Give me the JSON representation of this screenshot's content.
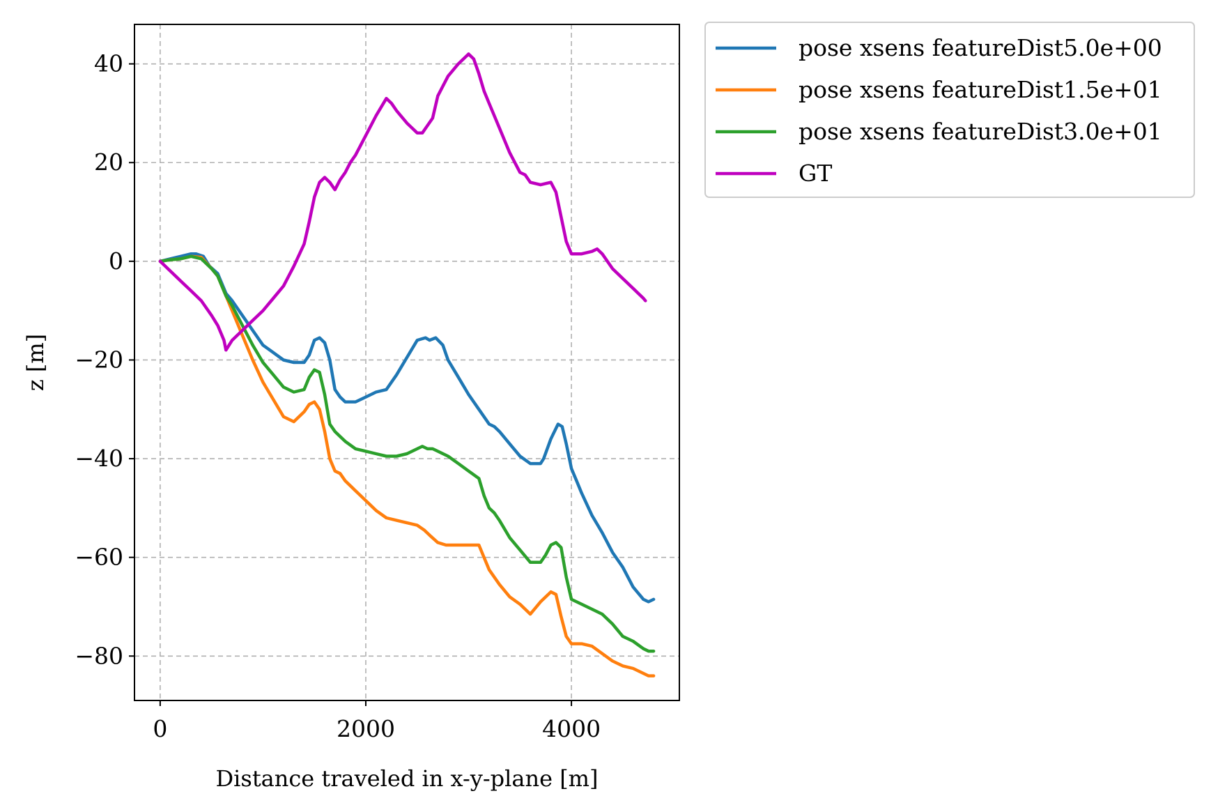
{
  "chart_data": {
    "type": "line",
    "xlabel": "Distance traveled in x-y-plane [m]",
    "ylabel": "z [m]",
    "xlim": [
      -250,
      5050
    ],
    "ylim": [
      -89,
      48
    ],
    "xticks": [
      0,
      2000,
      4000
    ],
    "xtick_labels": [
      "0",
      "2000",
      "4000"
    ],
    "yticks": [
      40,
      20,
      0,
      -20,
      -40,
      -60,
      -80
    ],
    "ytick_labels": [
      "40",
      "20",
      "0",
      "−20",
      "−40",
      "−60",
      "−80"
    ],
    "grid": true,
    "legend_position": "outside-top-right",
    "series": [
      {
        "name": "pose xsens featureDist5.0e+00",
        "color": "#1f77b4",
        "x": [
          0,
          100,
          200,
          300,
          350,
          420,
          480,
          560,
          640,
          700,
          800,
          900,
          1000,
          1100,
          1200,
          1300,
          1400,
          1450,
          1500,
          1550,
          1600,
          1650,
          1700,
          1750,
          1800,
          1900,
          2000,
          2100,
          2200,
          2300,
          2400,
          2500,
          2580,
          2620,
          2680,
          2750,
          2800,
          2900,
          3000,
          3100,
          3150,
          3200,
          3250,
          3300,
          3400,
          3500,
          3600,
          3700,
          3730,
          3800,
          3870,
          3910,
          3950,
          4000,
          4050,
          4100,
          4200,
          4300,
          4400,
          4500,
          4600,
          4700,
          4750,
          4800
        ],
        "y": [
          0,
          0.5,
          1,
          1.5,
          1.5,
          1,
          -1,
          -2.5,
          -6.5,
          -8,
          -11,
          -14,
          -17,
          -18.5,
          -20,
          -20.5,
          -20.5,
          -19,
          -16,
          -15.5,
          -16.5,
          -20,
          -26,
          -27.5,
          -28.5,
          -28.5,
          -27.5,
          -26.5,
          -26,
          -23,
          -19.5,
          -16,
          -15.5,
          -16,
          -15.5,
          -17,
          -20,
          -23.5,
          -27,
          -30,
          -31.5,
          -33,
          -33.5,
          -34.5,
          -37,
          -39.5,
          -41,
          -41,
          -40,
          -36,
          -33,
          -33.5,
          -37,
          -42,
          -44.5,
          -47,
          -51.5,
          -55,
          -59,
          -62,
          -66,
          -68.5,
          -69,
          -68.5
        ]
      },
      {
        "name": "pose xsens featureDist1.5e+01",
        "color": "#ff7f0e",
        "x": [
          0,
          100,
          200,
          300,
          400,
          500,
          560,
          640,
          700,
          800,
          900,
          1000,
          1100,
          1200,
          1300,
          1400,
          1450,
          1500,
          1550,
          1600,
          1650,
          1700,
          1750,
          1800,
          1900,
          2000,
          2100,
          2200,
          2300,
          2400,
          2500,
          2570,
          2620,
          2700,
          2780,
          2850,
          2900,
          3000,
          3100,
          3200,
          3300,
          3400,
          3500,
          3600,
          3700,
          3800,
          3850,
          3900,
          3950,
          4000,
          4050,
          4100,
          4200,
          4300,
          4400,
          4500,
          4600,
          4700,
          4750,
          4800
        ],
        "y": [
          0,
          0.3,
          0.5,
          1,
          0.8,
          -1.5,
          -3,
          -7,
          -10,
          -15,
          -20,
          -24.5,
          -28,
          -31.5,
          -32.5,
          -30.5,
          -29,
          -28.5,
          -30,
          -34.5,
          -40,
          -42.5,
          -43,
          -44.5,
          -46.5,
          -48.5,
          -50.5,
          -52,
          -52.5,
          -53,
          -53.5,
          -54.5,
          -55.5,
          -57,
          -57.5,
          -57.5,
          -57.5,
          -57.5,
          -57.5,
          -62.5,
          -65.5,
          -68,
          -69.5,
          -71.5,
          -69,
          -67,
          -67.5,
          -72,
          -76,
          -77.5,
          -77.5,
          -77.5,
          -78,
          -79.5,
          -81,
          -82,
          -82.5,
          -83.5,
          -84,
          -84
        ]
      },
      {
        "name": "pose xsens featureDist3.0e+01",
        "color": "#2ca02c",
        "x": [
          0,
          100,
          200,
          300,
          400,
          500,
          560,
          640,
          700,
          800,
          900,
          1000,
          1100,
          1200,
          1300,
          1400,
          1450,
          1500,
          1550,
          1600,
          1650,
          1700,
          1750,
          1800,
          1900,
          2000,
          2100,
          2200,
          2300,
          2400,
          2500,
          2550,
          2600,
          2650,
          2700,
          2800,
          2900,
          3000,
          3100,
          3150,
          3200,
          3250,
          3300,
          3400,
          3500,
          3600,
          3700,
          3750,
          3800,
          3850,
          3900,
          3950,
          4000,
          4050,
          4100,
          4200,
          4300,
          4400,
          4500,
          4600,
          4700,
          4750,
          4800
        ],
        "y": [
          0,
          0.3,
          0.5,
          1,
          0.5,
          -1.5,
          -3,
          -7,
          -9,
          -13,
          -17,
          -20.5,
          -23,
          -25.5,
          -26.5,
          -26,
          -23.5,
          -22,
          -22.5,
          -27,
          -33,
          -34.5,
          -35.5,
          -36.5,
          -38,
          -38.5,
          -39,
          -39.5,
          -39.5,
          -39,
          -38,
          -37.5,
          -38,
          -38,
          -38.5,
          -39.5,
          -41,
          -42.5,
          -44,
          -47.5,
          -50,
          -51,
          -52.5,
          -56,
          -58.5,
          -61,
          -61,
          -59.5,
          -57.5,
          -57,
          -58,
          -64,
          -68.5,
          -69,
          -69.5,
          -70.5,
          -71.5,
          -73.5,
          -76,
          -77,
          -78.5,
          -79,
          -79
        ]
      },
      {
        "name": "GT",
        "color": "#bf00bf",
        "x": [
          0,
          100,
          200,
          300,
          400,
          500,
          560,
          620,
          640,
          700,
          800,
          900,
          1000,
          1100,
          1200,
          1300,
          1400,
          1450,
          1500,
          1550,
          1600,
          1650,
          1700,
          1750,
          1800,
          1850,
          1900,
          2000,
          2100,
          2200,
          2250,
          2300,
          2400,
          2500,
          2550,
          2600,
          2650,
          2700,
          2800,
          2900,
          3000,
          3050,
          3100,
          3150,
          3200,
          3300,
          3400,
          3500,
          3550,
          3600,
          3700,
          3800,
          3850,
          3900,
          3950,
          4000,
          4050,
          4100,
          4200,
          4250,
          4300,
          4400,
          4500,
          4600,
          4700,
          4720
        ],
        "y": [
          0,
          -2,
          -4,
          -6,
          -8,
          -11,
          -13,
          -16,
          -18,
          -16,
          -14,
          -12,
          -10,
          -7.5,
          -5,
          -1,
          3.5,
          8,
          13,
          16,
          17,
          16,
          14.5,
          16.5,
          18,
          20,
          21.5,
          25.5,
          29.5,
          33,
          32,
          30.5,
          28,
          26,
          26,
          27.5,
          29,
          33.5,
          37.5,
          40,
          42,
          41,
          38,
          34.5,
          32,
          27,
          22,
          18,
          17.5,
          16,
          15.5,
          16,
          14,
          9,
          4,
          1.5,
          1.5,
          1.5,
          2,
          2.5,
          1.5,
          -1.5,
          -3.5,
          -5.5,
          -7.5,
          -8
        ]
      }
    ]
  }
}
